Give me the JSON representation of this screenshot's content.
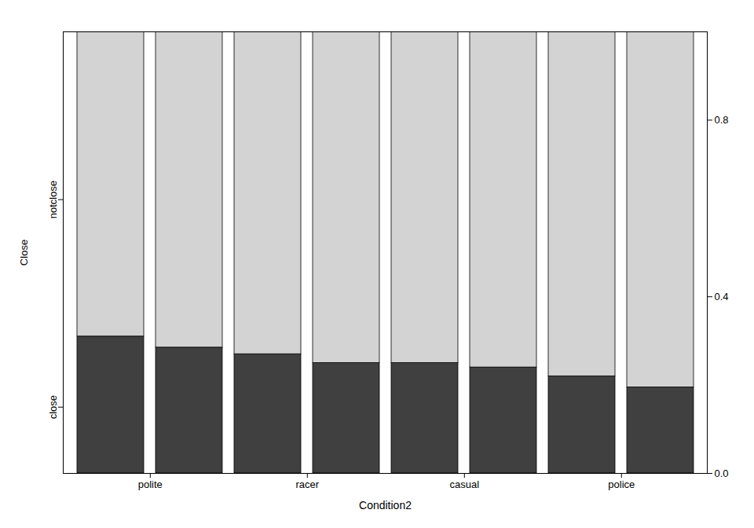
{
  "chart_data": {
    "type": "bar",
    "stacked": true,
    "xlabel": "Condition2",
    "ylabel": "Close",
    "categories": [
      "polite",
      null,
      "racer",
      null,
      "casual",
      null,
      "police",
      null
    ],
    "series": [
      {
        "name": "close",
        "color": "#404040",
        "values": [
          0.31,
          0.285,
          0.27,
          0.25,
          0.25,
          0.24,
          0.22,
          0.195
        ]
      },
      {
        "name": "notclose",
        "color": "#d3d3d3",
        "values": [
          0.69,
          0.715,
          0.73,
          0.75,
          0.75,
          0.76,
          0.78,
          0.805
        ]
      }
    ],
    "ylim": [
      0,
      1.0
    ],
    "yticks": [
      {
        "value": 0.15,
        "label": "close"
      },
      {
        "value": 0.62,
        "label": "notclose"
      }
    ],
    "y2lim": [
      0,
      1.0
    ],
    "y2ticks": [
      {
        "value": 0.0,
        "label": "0.0"
      },
      0.4,
      0.8
    ]
  }
}
